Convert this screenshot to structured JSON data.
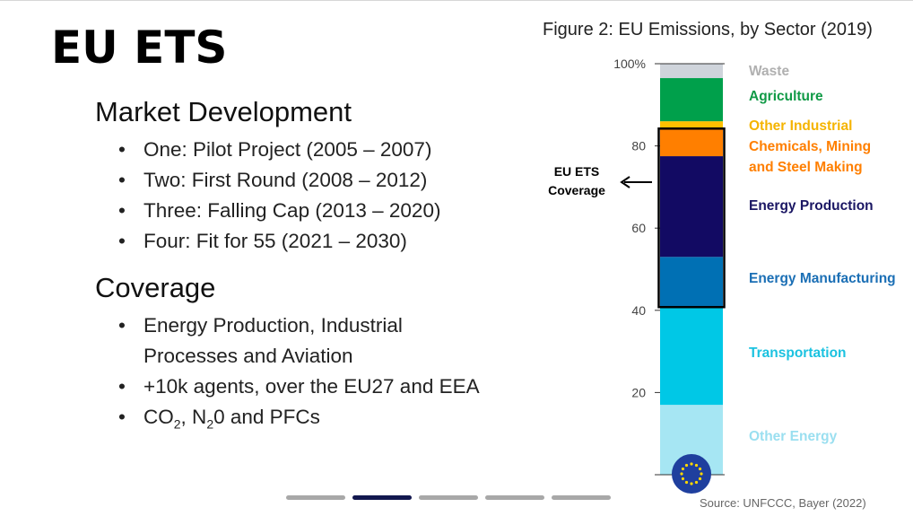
{
  "slide": {
    "title": "EU ETS",
    "sections": [
      {
        "heading": "Market Development",
        "bullets": [
          "One: Pilot Project (2005 – 2007)",
          "Two: First Round (2008 – 2012)",
          "Three: Falling Cap (2013 – 2020)",
          "Four: Fit for 55 (2021 – 2030)"
        ]
      },
      {
        "heading": "Coverage",
        "bullets": [
          "Energy Production, Industrial",
          "Processes and Aviation",
          "+10k agents, over the EU27 and EEA"
        ],
        "gas_bullet": {
          "co": "CO",
          "co_sub": "2",
          "mid": ", N",
          "n_sub": "2",
          "rest": "0 and PFCs"
        }
      }
    ],
    "bullet_symbol": "•",
    "progress": {
      "total": 5,
      "active_index": 1
    }
  },
  "figure": {
    "title": "Figure 2: EU Emissions, by Sector (2019)",
    "source": "Source: UNFCCC, Bayer (2022)",
    "ets_label_line1": "EU ETS",
    "ets_label_line2": "Coverage",
    "badge_icon": "eu-flag-icon"
  },
  "chart_data": {
    "type": "bar",
    "stacked": true,
    "percent_axis": true,
    "ylim": [
      0,
      100
    ],
    "yticks": [
      20,
      40,
      60,
      80,
      100
    ],
    "ytick_labels": [
      "20",
      "40",
      "60",
      "80",
      "100%"
    ],
    "grid": false,
    "legend_position": "right",
    "series": [
      {
        "name": "Other Energy",
        "from": 0,
        "to": 17,
        "color": "#a6e6f3",
        "label_color": "#9adff0"
      },
      {
        "name": "Transportation",
        "from": 17,
        "to": 41,
        "color": "#00c8e6",
        "label_color": "#1bc2e0"
      },
      {
        "name": "Energy Manufacturing",
        "from": 41,
        "to": 53,
        "color": "#0070b4",
        "label_color": "#1b6fb5"
      },
      {
        "name": "Energy Production",
        "from": 53,
        "to": 77.5,
        "color": "#120a63",
        "label_color": "#1a1663"
      },
      {
        "name": "Chemicals, Mining and Steel Making",
        "from": 77.5,
        "to": 84,
        "color": "#ff7f00",
        "label_color": "#ff7f00"
      },
      {
        "name": "Other Industrial",
        "from": 84,
        "to": 86,
        "color": "#ffc000",
        "label_color": "#f5b400"
      },
      {
        "name": "Agriculture",
        "from": 86,
        "to": 96.5,
        "color": "#00a04b",
        "label_color": "#109a46"
      },
      {
        "name": "Waste",
        "from": 96.5,
        "to": 100,
        "color": "#cfd4db",
        "label_color": "#b0b0b0"
      }
    ],
    "ets_coverage_range": [
      41,
      84
    ]
  }
}
